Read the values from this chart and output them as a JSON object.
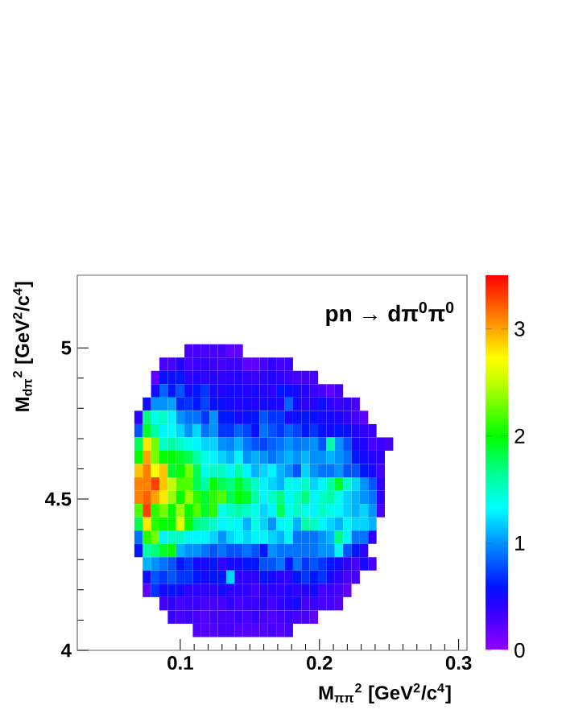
{
  "chart_data": {
    "type": "heatmap",
    "x": [
      0.07,
      0.076,
      0.082,
      0.088,
      0.094,
      0.1,
      0.106,
      0.112,
      0.118,
      0.124,
      0.13,
      0.136,
      0.142,
      0.148,
      0.154,
      0.16,
      0.166,
      0.172,
      0.178,
      0.184,
      0.19,
      0.196,
      0.202,
      0.208,
      0.214,
      0.22,
      0.226,
      0.232,
      0.238,
      0.244,
      0.25
    ],
    "y": [
      4.99,
      4.946,
      4.902,
      4.858,
      4.814,
      4.77,
      4.726,
      4.682,
      4.638,
      4.594,
      4.55,
      4.506,
      4.462,
      4.418,
      4.374,
      4.33,
      4.286,
      4.242,
      4.198,
      4.154,
      4.11,
      4.066
    ],
    "cells": [
      [
        null,
        null,
        null,
        null,
        null,
        null,
        0.3,
        0.3,
        0.3,
        0.3,
        0.3,
        0.2,
        0.2,
        null,
        null,
        null,
        null,
        null,
        null,
        null,
        null,
        null,
        null,
        null,
        null,
        null,
        null,
        null,
        null,
        null,
        null
      ],
      [
        null,
        null,
        null,
        0.3,
        0.3,
        0.45,
        0.3,
        0.35,
        0.4,
        0.35,
        0.3,
        0.35,
        0.35,
        0.2,
        0.2,
        0.3,
        0.4,
        0.3,
        0.35,
        null,
        null,
        null,
        null,
        null,
        null,
        null,
        null,
        null,
        null,
        null,
        null
      ],
      [
        null,
        null,
        0.2,
        0.55,
        0.55,
        0.6,
        0.4,
        0.45,
        0.4,
        0.45,
        0.4,
        0.4,
        0.45,
        0.4,
        0.35,
        0.4,
        0.45,
        0.4,
        0.35,
        0.3,
        0.3,
        0.3,
        null,
        null,
        null,
        null,
        null,
        null,
        null,
        null,
        null
      ],
      [
        null,
        null,
        0.5,
        0.85,
        0.6,
        0.8,
        0.5,
        0.6,
        0.7,
        0.5,
        0.45,
        0.5,
        0.5,
        0.45,
        0.5,
        0.45,
        0.4,
        0.6,
        0.55,
        0.5,
        0.45,
        0.35,
        0.3,
        0.2,
        0.3,
        null,
        null,
        null,
        null,
        null,
        null
      ],
      [
        null,
        0.5,
        1.0,
        1.0,
        1.05,
        0.65,
        0.7,
        0.6,
        0.75,
        0.55,
        0.55,
        0.5,
        0.45,
        0.5,
        0.45,
        0.5,
        0.5,
        0.45,
        0.85,
        0.5,
        0.4,
        0.45,
        0.55,
        0.4,
        0.35,
        0.4,
        0.3,
        null,
        null,
        null,
        null
      ],
      [
        0.4,
        1.7,
        1.4,
        1.5,
        1.3,
        1.0,
        0.9,
        0.9,
        0.7,
        1.0,
        0.6,
        0.6,
        0.5,
        0.55,
        0.6,
        0.8,
        0.7,
        0.7,
        0.5,
        0.55,
        0.6,
        0.55,
        0.5,
        0.5,
        0.45,
        0.4,
        0.3,
        0.2,
        null,
        null,
        null
      ],
      [
        0.8,
        1.9,
        1.6,
        1.3,
        1.35,
        1.2,
        1.0,
        1.2,
        0.9,
        1.0,
        0.7,
        0.7,
        0.85,
        0.75,
        0.55,
        0.9,
        0.8,
        0.7,
        0.85,
        0.75,
        0.6,
        0.7,
        0.55,
        0.5,
        0.6,
        0.55,
        0.45,
        0.4,
        0.35,
        null,
        null
      ],
      [
        1.8,
        2.8,
        2.3,
        1.5,
        1.6,
        1.5,
        1.4,
        1.3,
        1.2,
        1.2,
        1.0,
        0.95,
        1.1,
        0.9,
        0.8,
        0.75,
        0.85,
        0.9,
        1.0,
        0.9,
        0.95,
        1.0,
        0.8,
        1.6,
        1.0,
        0.8,
        0.5,
        0.45,
        0.3,
        0.35,
        0.3
      ],
      [
        2.0,
        3.0,
        2.3,
        2.0,
        2.0,
        1.9,
        1.8,
        1.6,
        1.4,
        1.3,
        1.2,
        1.1,
        1.3,
        1.0,
        1.1,
        1.0,
        0.9,
        1.0,
        1.1,
        1.0,
        1.1,
        1.0,
        1.0,
        1.1,
        1.0,
        0.9,
        0.6,
        0.5,
        0.45,
        0.4,
        null
      ],
      [
        2.9,
        3.1,
        2.7,
        2.9,
        1.9,
        2.0,
        2.3,
        1.8,
        1.4,
        1.5,
        1.5,
        1.3,
        1.6,
        1.3,
        1.1,
        1.2,
        1.3,
        1.1,
        1.0,
        0.8,
        1.2,
        1.0,
        0.9,
        0.9,
        1.0,
        0.8,
        0.8,
        0.6,
        0.5,
        0.3,
        null
      ],
      [
        3.1,
        3.1,
        3.3,
        2.9,
        2.5,
        2.2,
        2.2,
        1.8,
        1.6,
        2.0,
        1.8,
        1.7,
        1.9,
        1.7,
        1.5,
        1.3,
        1.2,
        1.1,
        1.4,
        1.3,
        1.5,
        1.2,
        1.3,
        1.6,
        1.9,
        1.5,
        1.2,
        1.0,
        0.8,
        0.4,
        null
      ],
      [
        3.1,
        3.2,
        3.0,
        2.8,
        2.4,
        2.0,
        2.4,
        2.1,
        1.9,
        2.1,
        2.2,
        1.8,
        2.0,
        1.9,
        1.6,
        1.3,
        1.5,
        1.7,
        1.3,
        1.5,
        1.7,
        1.3,
        1.5,
        1.6,
        1.4,
        1.2,
        1.1,
        1.0,
        0.9,
        0.4,
        null
      ],
      [
        2.2,
        3.3,
        2.1,
        2.3,
        2.0,
        2.4,
        2.0,
        2.2,
        1.9,
        2.1,
        1.4,
        1.5,
        1.6,
        1.5,
        1.4,
        1.2,
        1.3,
        1.8,
        1.4,
        1.5,
        1.4,
        1.3,
        1.5,
        1.4,
        1.3,
        1.2,
        1.1,
        1.2,
        1.0,
        0.3,
        null
      ],
      [
        1.8,
        2.8,
        2.1,
        2.0,
        2.0,
        2.6,
        2.0,
        1.7,
        1.6,
        1.5,
        1.3,
        1.4,
        1.3,
        1.1,
        1.4,
        1.2,
        1.0,
        1.3,
        1.4,
        1.1,
        1.6,
        1.5,
        1.3,
        1.2,
        1.1,
        1.3,
        1.2,
        1.2,
        1.1,
        null,
        null
      ],
      [
        0.9,
        2.1,
        2.3,
        1.3,
        1.5,
        1.5,
        1.3,
        1.3,
        1.3,
        1.2,
        1.0,
        1.2,
        1.3,
        1.2,
        1.3,
        1.3,
        1.2,
        1.1,
        1.3,
        0.9,
        0.9,
        0.9,
        1.0,
        1.1,
        1.7,
        1.3,
        0.9,
        0.9,
        0.4,
        null,
        null
      ],
      [
        0.6,
        1.6,
        1.7,
        1.9,
        2.0,
        1.1,
        1.0,
        1.0,
        0.9,
        0.8,
        0.9,
        0.8,
        0.8,
        0.9,
        0.8,
        0.6,
        1.0,
        0.9,
        0.9,
        0.9,
        0.9,
        0.9,
        1.0,
        1.0,
        1.3,
        0.8,
        0.6,
        0.4,
        null,
        null,
        null
      ],
      [
        null,
        1.1,
        1.0,
        0.9,
        0.8,
        0.6,
        0.7,
        0.5,
        0.5,
        0.6,
        0.4,
        0.5,
        0.5,
        0.6,
        0.6,
        0.8,
        0.8,
        0.9,
        0.6,
        0.9,
        0.7,
        0.8,
        0.7,
        0.6,
        0.5,
        0.4,
        0.3,
        0.5,
        0.3,
        null,
        null
      ],
      [
        null,
        0.5,
        0.8,
        0.7,
        0.8,
        0.7,
        0.7,
        0.6,
        0.5,
        0.6,
        0.6,
        1.2,
        0.4,
        0.4,
        0.4,
        0.6,
        0.5,
        0.4,
        0.4,
        0.6,
        0.7,
        0.6,
        0.7,
        0.5,
        0.4,
        0.3,
        0.3,
        null,
        null,
        null,
        null
      ],
      [
        null,
        0.2,
        0.7,
        0.5,
        0.6,
        0.5,
        0.4,
        0.4,
        0.4,
        0.4,
        0.5,
        0.4,
        0.4,
        0.4,
        0.3,
        0.4,
        0.4,
        0.4,
        0.45,
        0.4,
        0.45,
        0.5,
        0.3,
        0.35,
        0.3,
        0.2,
        null,
        null,
        null,
        null,
        null
      ],
      [
        null,
        null,
        null,
        0.3,
        0.4,
        0.3,
        0.35,
        0.35,
        0.3,
        0.3,
        0.3,
        0.4,
        0.3,
        0.35,
        0.35,
        0.4,
        0.3,
        0.4,
        0.45,
        0.5,
        0.3,
        0.35,
        0.3,
        0.3,
        0.25,
        null,
        null,
        null,
        null,
        null,
        null
      ],
      [
        null,
        null,
        null,
        null,
        0.35,
        0.3,
        0.35,
        0.3,
        0.25,
        0.3,
        0.3,
        0.3,
        0.35,
        0.3,
        0.35,
        0.3,
        0.25,
        0.3,
        0.35,
        0.3,
        0.3,
        0.2,
        null,
        null,
        null,
        null,
        null,
        null,
        null,
        null,
        null
      ],
      [
        null,
        null,
        null,
        null,
        null,
        null,
        null,
        0.25,
        0.25,
        0.25,
        0.3,
        0.3,
        0.25,
        0.25,
        0.25,
        0.25,
        0.3,
        0.25,
        0.3,
        null,
        null,
        null,
        null,
        null,
        null,
        null,
        null,
        null,
        null,
        null,
        null
      ]
    ],
    "xlim": [
      0.026,
      0.306
    ],
    "ylim": [
      4,
      5.24
    ],
    "xticks": [
      0.1,
      0.2,
      0.3
    ],
    "yticks": [
      4,
      4.5,
      5
    ],
    "clim": [
      0,
      3.5
    ],
    "cticks": [
      0,
      1,
      2,
      3
    ],
    "xlabel": "M$_{ππ}$$^{2}$ [GeV$^{2}$/c$^{4}$]",
    "ylabel": "M$_{dπ}$$^{2}$ [GeV$^{2}$/c$^{4}$]",
    "annotations": [
      "pn → dπ$^{0}$π$^{0}$"
    ]
  }
}
